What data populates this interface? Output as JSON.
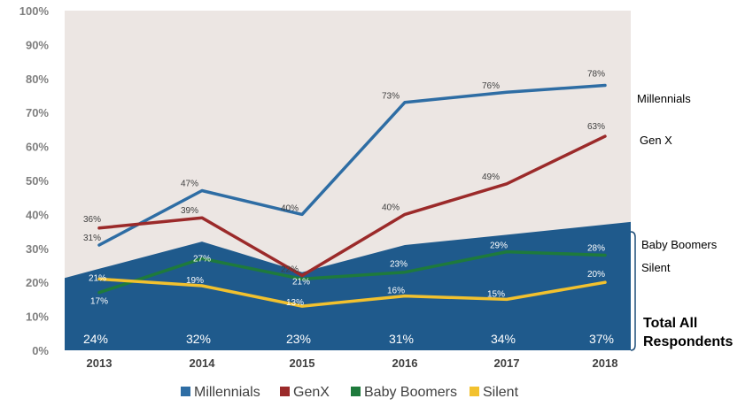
{
  "chart_data": {
    "type": "line",
    "categories": [
      "2013",
      "2014",
      "2015",
      "2016",
      "2017",
      "2018"
    ],
    "ylim": [
      0,
      100
    ],
    "yticks": [
      "0%",
      "10%",
      "20%",
      "30%",
      "40%",
      "50%",
      "60%",
      "70%",
      "80%",
      "90%",
      "100%"
    ],
    "area": {
      "name": "Total All Respondents",
      "values": [
        24,
        32,
        23,
        31,
        34,
        37
      ],
      "labels": [
        "24%",
        "32%",
        "23%",
        "31%",
        "34%",
        "37%"
      ],
      "color": "#1f5a8c"
    },
    "series": [
      {
        "name": "Millennials",
        "values": [
          31,
          47,
          40,
          73,
          76,
          78
        ],
        "labels": [
          "31%",
          "47%",
          "40%",
          "73%",
          "76%",
          "78%"
        ],
        "color": "#2e6da4"
      },
      {
        "name": "GenX",
        "values": [
          36,
          39,
          22,
          40,
          49,
          63
        ],
        "labels": [
          "36%",
          "39%",
          "22%",
          "40%",
          "49%",
          "63%"
        ],
        "color": "#9b2a2a"
      },
      {
        "name": "Baby Boomers",
        "values": [
          17,
          27,
          21,
          23,
          29,
          28
        ],
        "labels": [
          "17%",
          "27%",
          "21%",
          "23%",
          "29%",
          "28%"
        ],
        "color": "#1e7a3c"
      },
      {
        "name": "Silent",
        "values": [
          21,
          19,
          13,
          16,
          15,
          20
        ],
        "labels": [
          "21%",
          "19%",
          "13%",
          "16%",
          "15%",
          "20%"
        ],
        "color": "#f2c12e"
      }
    ],
    "right_labels": {
      "millennials": "Millennials",
      "genx": "Gen X",
      "boomers": "Baby Boomers",
      "silent": "Silent",
      "total_line1": "Total All",
      "total_line2": "Respondents"
    },
    "legend": {
      "placement": "bottom",
      "items": [
        "Millennials",
        "GenX",
        "Baby Boomers",
        "Silent"
      ]
    },
    "plot_background": "#ece6e3",
    "grid": false
  }
}
